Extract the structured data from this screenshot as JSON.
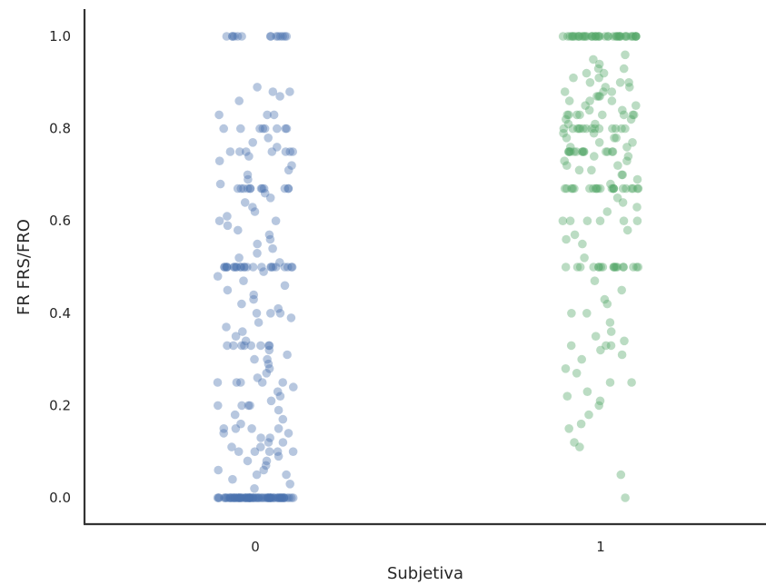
{
  "chart_data": {
    "type": "scatter",
    "subtype": "strip",
    "title": "",
    "xlabel": "Subjetiva",
    "ylabel": "FR FRS/FRO",
    "categories": [
      "0",
      "1"
    ],
    "ylim": [
      -0.06,
      1.06
    ],
    "yticks": [
      "0.0",
      "0.2",
      "0.4",
      "0.6",
      "0.8",
      "1.0"
    ],
    "grid": false,
    "legend": "none",
    "marker_alpha": 0.4,
    "series": [
      {
        "category": "0",
        "color": "#4c72b0",
        "values": [
          0,
          0,
          0,
          0,
          0,
          0,
          0,
          0,
          0,
          0,
          0,
          0,
          0,
          0,
          0,
          0,
          0,
          0,
          0,
          0,
          0,
          0,
          0,
          0,
          0,
          0,
          0,
          0,
          0,
          0,
          0,
          0,
          0,
          0,
          0,
          0,
          0,
          0,
          0,
          0,
          0,
          0,
          0,
          0,
          0,
          0,
          0,
          0,
          0,
          0,
          0,
          0,
          0,
          0,
          0,
          0,
          0,
          0,
          0,
          0,
          0,
          0,
          0,
          0,
          0,
          0,
          0,
          0,
          0,
          0,
          0,
          0,
          0,
          0,
          0,
          0,
          0,
          0,
          0,
          0,
          0.02,
          0.03,
          0.04,
          0.05,
          0.05,
          0.06,
          0.06,
          0.07,
          0.08,
          0.08,
          0.09,
          0.1,
          0.1,
          0.1,
          0.1,
          0.1,
          0.11,
          0.11,
          0.12,
          0.12,
          0.13,
          0.13,
          0.14,
          0.14,
          0.15,
          0.15,
          0.15,
          0.15,
          0.16,
          0.17,
          0.18,
          0.19,
          0.2,
          0.2,
          0.2,
          0.2,
          0.21,
          0.22,
          0.23,
          0.24,
          0.25,
          0.25,
          0.25,
          0.25,
          0.25,
          0.26,
          0.27,
          0.28,
          0.29,
          0.3,
          0.3,
          0.31,
          0.32,
          0.33,
          0.33,
          0.33,
          0.33,
          0.33,
          0.33,
          0.33,
          0.33,
          0.34,
          0.35,
          0.36,
          0.37,
          0.38,
          0.39,
          0.4,
          0.4,
          0.4,
          0.41,
          0.42,
          0.43,
          0.44,
          0.45,
          0.46,
          0.47,
          0.48,
          0.49,
          0.5,
          0.5,
          0.5,
          0.5,
          0.5,
          0.5,
          0.5,
          0.5,
          0.5,
          0.5,
          0.5,
          0.5,
          0.5,
          0.5,
          0.5,
          0.5,
          0.5,
          0.5,
          0.5,
          0.5,
          0.5,
          0.5,
          0.5,
          0.5,
          0.51,
          0.52,
          0.53,
          0.54,
          0.55,
          0.56,
          0.57,
          0.58,
          0.59,
          0.6,
          0.6,
          0.61,
          0.62,
          0.63,
          0.64,
          0.65,
          0.66,
          0.67,
          0.67,
          0.67,
          0.67,
          0.67,
          0.67,
          0.67,
          0.67,
          0.67,
          0.67,
          0.67,
          0.67,
          0.68,
          0.69,
          0.7,
          0.71,
          0.72,
          0.73,
          0.74,
          0.75,
          0.75,
          0.75,
          0.75,
          0.75,
          0.75,
          0.75,
          0.76,
          0.77,
          0.78,
          0.8,
          0.8,
          0.8,
          0.8,
          0.8,
          0.8,
          0.8,
          0.8,
          0.83,
          0.83,
          0.83,
          0.86,
          0.87,
          0.88,
          0.88,
          0.89,
          1,
          1,
          1,
          1,
          1,
          1,
          1,
          1,
          1,
          1,
          1,
          1,
          1,
          1
        ]
      },
      {
        "category": "1",
        "color": "#55a868",
        "values": [
          0,
          0.05,
          0.11,
          0.12,
          0.15,
          0.16,
          0.18,
          0.2,
          0.21,
          0.22,
          0.23,
          0.25,
          0.25,
          0.27,
          0.28,
          0.3,
          0.31,
          0.32,
          0.33,
          0.33,
          0.33,
          0.34,
          0.35,
          0.36,
          0.38,
          0.4,
          0.4,
          0.42,
          0.43,
          0.45,
          0.47,
          0.5,
          0.5,
          0.5,
          0.5,
          0.5,
          0.5,
          0.5,
          0.5,
          0.5,
          0.5,
          0.5,
          0.5,
          0.5,
          0.5,
          0.5,
          0.5,
          0.5,
          0.5,
          0.52,
          0.55,
          0.56,
          0.57,
          0.58,
          0.6,
          0.6,
          0.6,
          0.6,
          0.6,
          0.6,
          0.62,
          0.63,
          0.64,
          0.65,
          0.67,
          0.67,
          0.67,
          0.67,
          0.67,
          0.67,
          0.67,
          0.67,
          0.67,
          0.67,
          0.67,
          0.67,
          0.67,
          0.67,
          0.67,
          0.67,
          0.67,
          0.67,
          0.67,
          0.67,
          0.67,
          0.68,
          0.69,
          0.7,
          0.7,
          0.71,
          0.71,
          0.72,
          0.72,
          0.73,
          0.73,
          0.74,
          0.74,
          0.75,
          0.75,
          0.75,
          0.75,
          0.75,
          0.75,
          0.75,
          0.75,
          0.75,
          0.75,
          0.75,
          0.75,
          0.75,
          0.75,
          0.76,
          0.76,
          0.77,
          0.77,
          0.78,
          0.78,
          0.78,
          0.79,
          0.79,
          0.8,
          0.8,
          0.8,
          0.8,
          0.8,
          0.8,
          0.8,
          0.8,
          0.8,
          0.8,
          0.8,
          0.8,
          0.8,
          0.8,
          0.81,
          0.81,
          0.82,
          0.82,
          0.83,
          0.83,
          0.83,
          0.83,
          0.83,
          0.83,
          0.83,
          0.83,
          0.84,
          0.84,
          0.85,
          0.85,
          0.86,
          0.86,
          0.86,
          0.87,
          0.87,
          0.87,
          0.88,
          0.88,
          0.88,
          0.89,
          0.89,
          0.9,
          0.9,
          0.9,
          0.91,
          0.91,
          0.92,
          0.92,
          0.93,
          0.93,
          0.94,
          0.95,
          0.96,
          1,
          1,
          1,
          1,
          1,
          1,
          1,
          1,
          1,
          1,
          1,
          1,
          1,
          1,
          1,
          1,
          1,
          1,
          1,
          1,
          1,
          1,
          1,
          1,
          1,
          1,
          1,
          1,
          1,
          1,
          1,
          1,
          1,
          1,
          1,
          1,
          1,
          1,
          1,
          1,
          1,
          1,
          1,
          1,
          1
        ]
      }
    ]
  }
}
